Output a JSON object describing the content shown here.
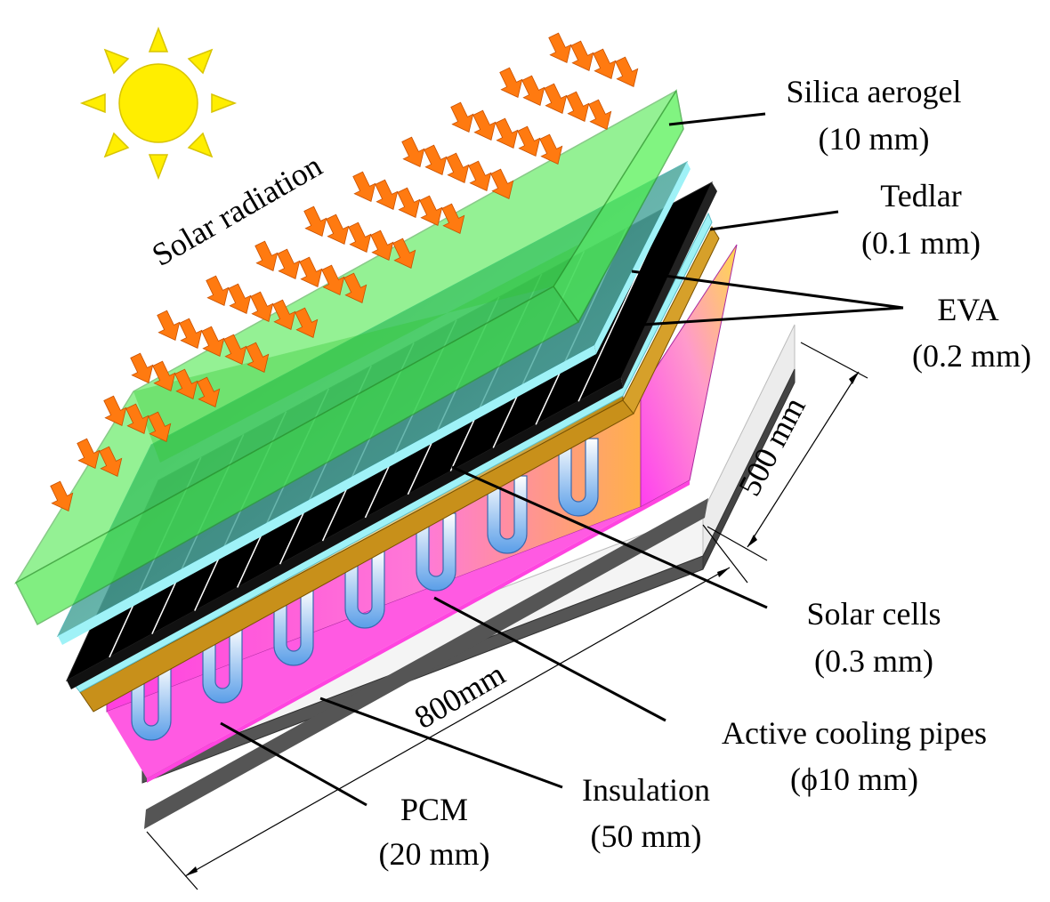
{
  "diagram": {
    "solar_radiation": "Solar radiation",
    "labels": {
      "aerogel": {
        "name": "Silica aerogel",
        "spec": "(10 mm)"
      },
      "tedlar": {
        "name": "Tedlar",
        "spec": "(0.1 mm)"
      },
      "eva": {
        "name": "EVA",
        "spec": "(0.2 mm)"
      },
      "solar_cells": {
        "name": "Solar cells",
        "spec": "(0.3 mm)"
      },
      "cooling_pipes": {
        "name": "Active cooling pipes",
        "spec": "(ϕ10 mm)"
      },
      "insulation": {
        "name": "Insulation",
        "spec": "(50 mm)"
      },
      "pcm": {
        "name": "PCM",
        "spec": "(20 mm)"
      }
    },
    "dimensions": {
      "width": "500 mm",
      "length": "800mm"
    },
    "colors": {
      "sun": "#ffee00",
      "arrows": "#ff7a10",
      "aerogel": "#3ee63e",
      "glass": "#6fd3d0",
      "cells": "#000000",
      "eva": "#9ff2f7",
      "tedlar": "#c8901a",
      "pcm": "#ff3fe0",
      "insulation": "#f4f4f4",
      "base": "#555555"
    }
  }
}
